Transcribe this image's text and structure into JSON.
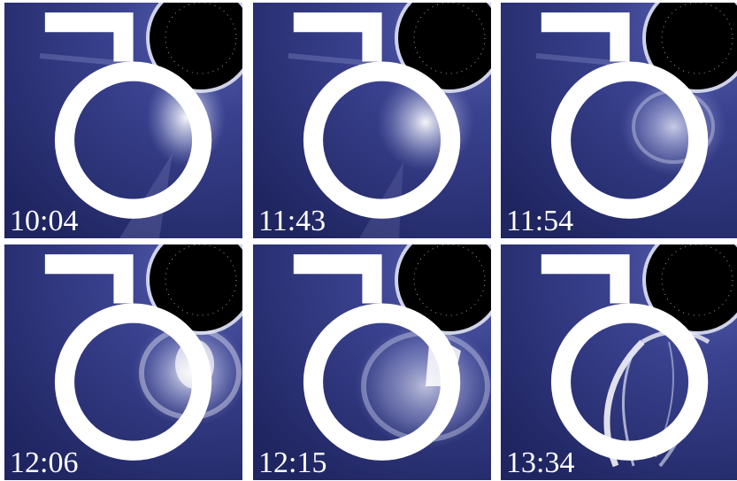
{
  "panels": [
    {
      "id": "p1",
      "time": "10:04"
    },
    {
      "id": "p2",
      "time": "11:43"
    },
    {
      "id": "p3",
      "time": "11:54"
    },
    {
      "id": "p4",
      "time": "12:06"
    },
    {
      "id": "p5",
      "time": "12:15"
    },
    {
      "id": "p6",
      "time": "13:34"
    }
  ],
  "colors": {
    "background": "#ffffff",
    "corona_dark": "#1f2560",
    "corona_mid": "#3a4290",
    "ejecta": "#e8eaf6",
    "occulter": "#000000"
  },
  "icon": "sun-symbol-icon"
}
